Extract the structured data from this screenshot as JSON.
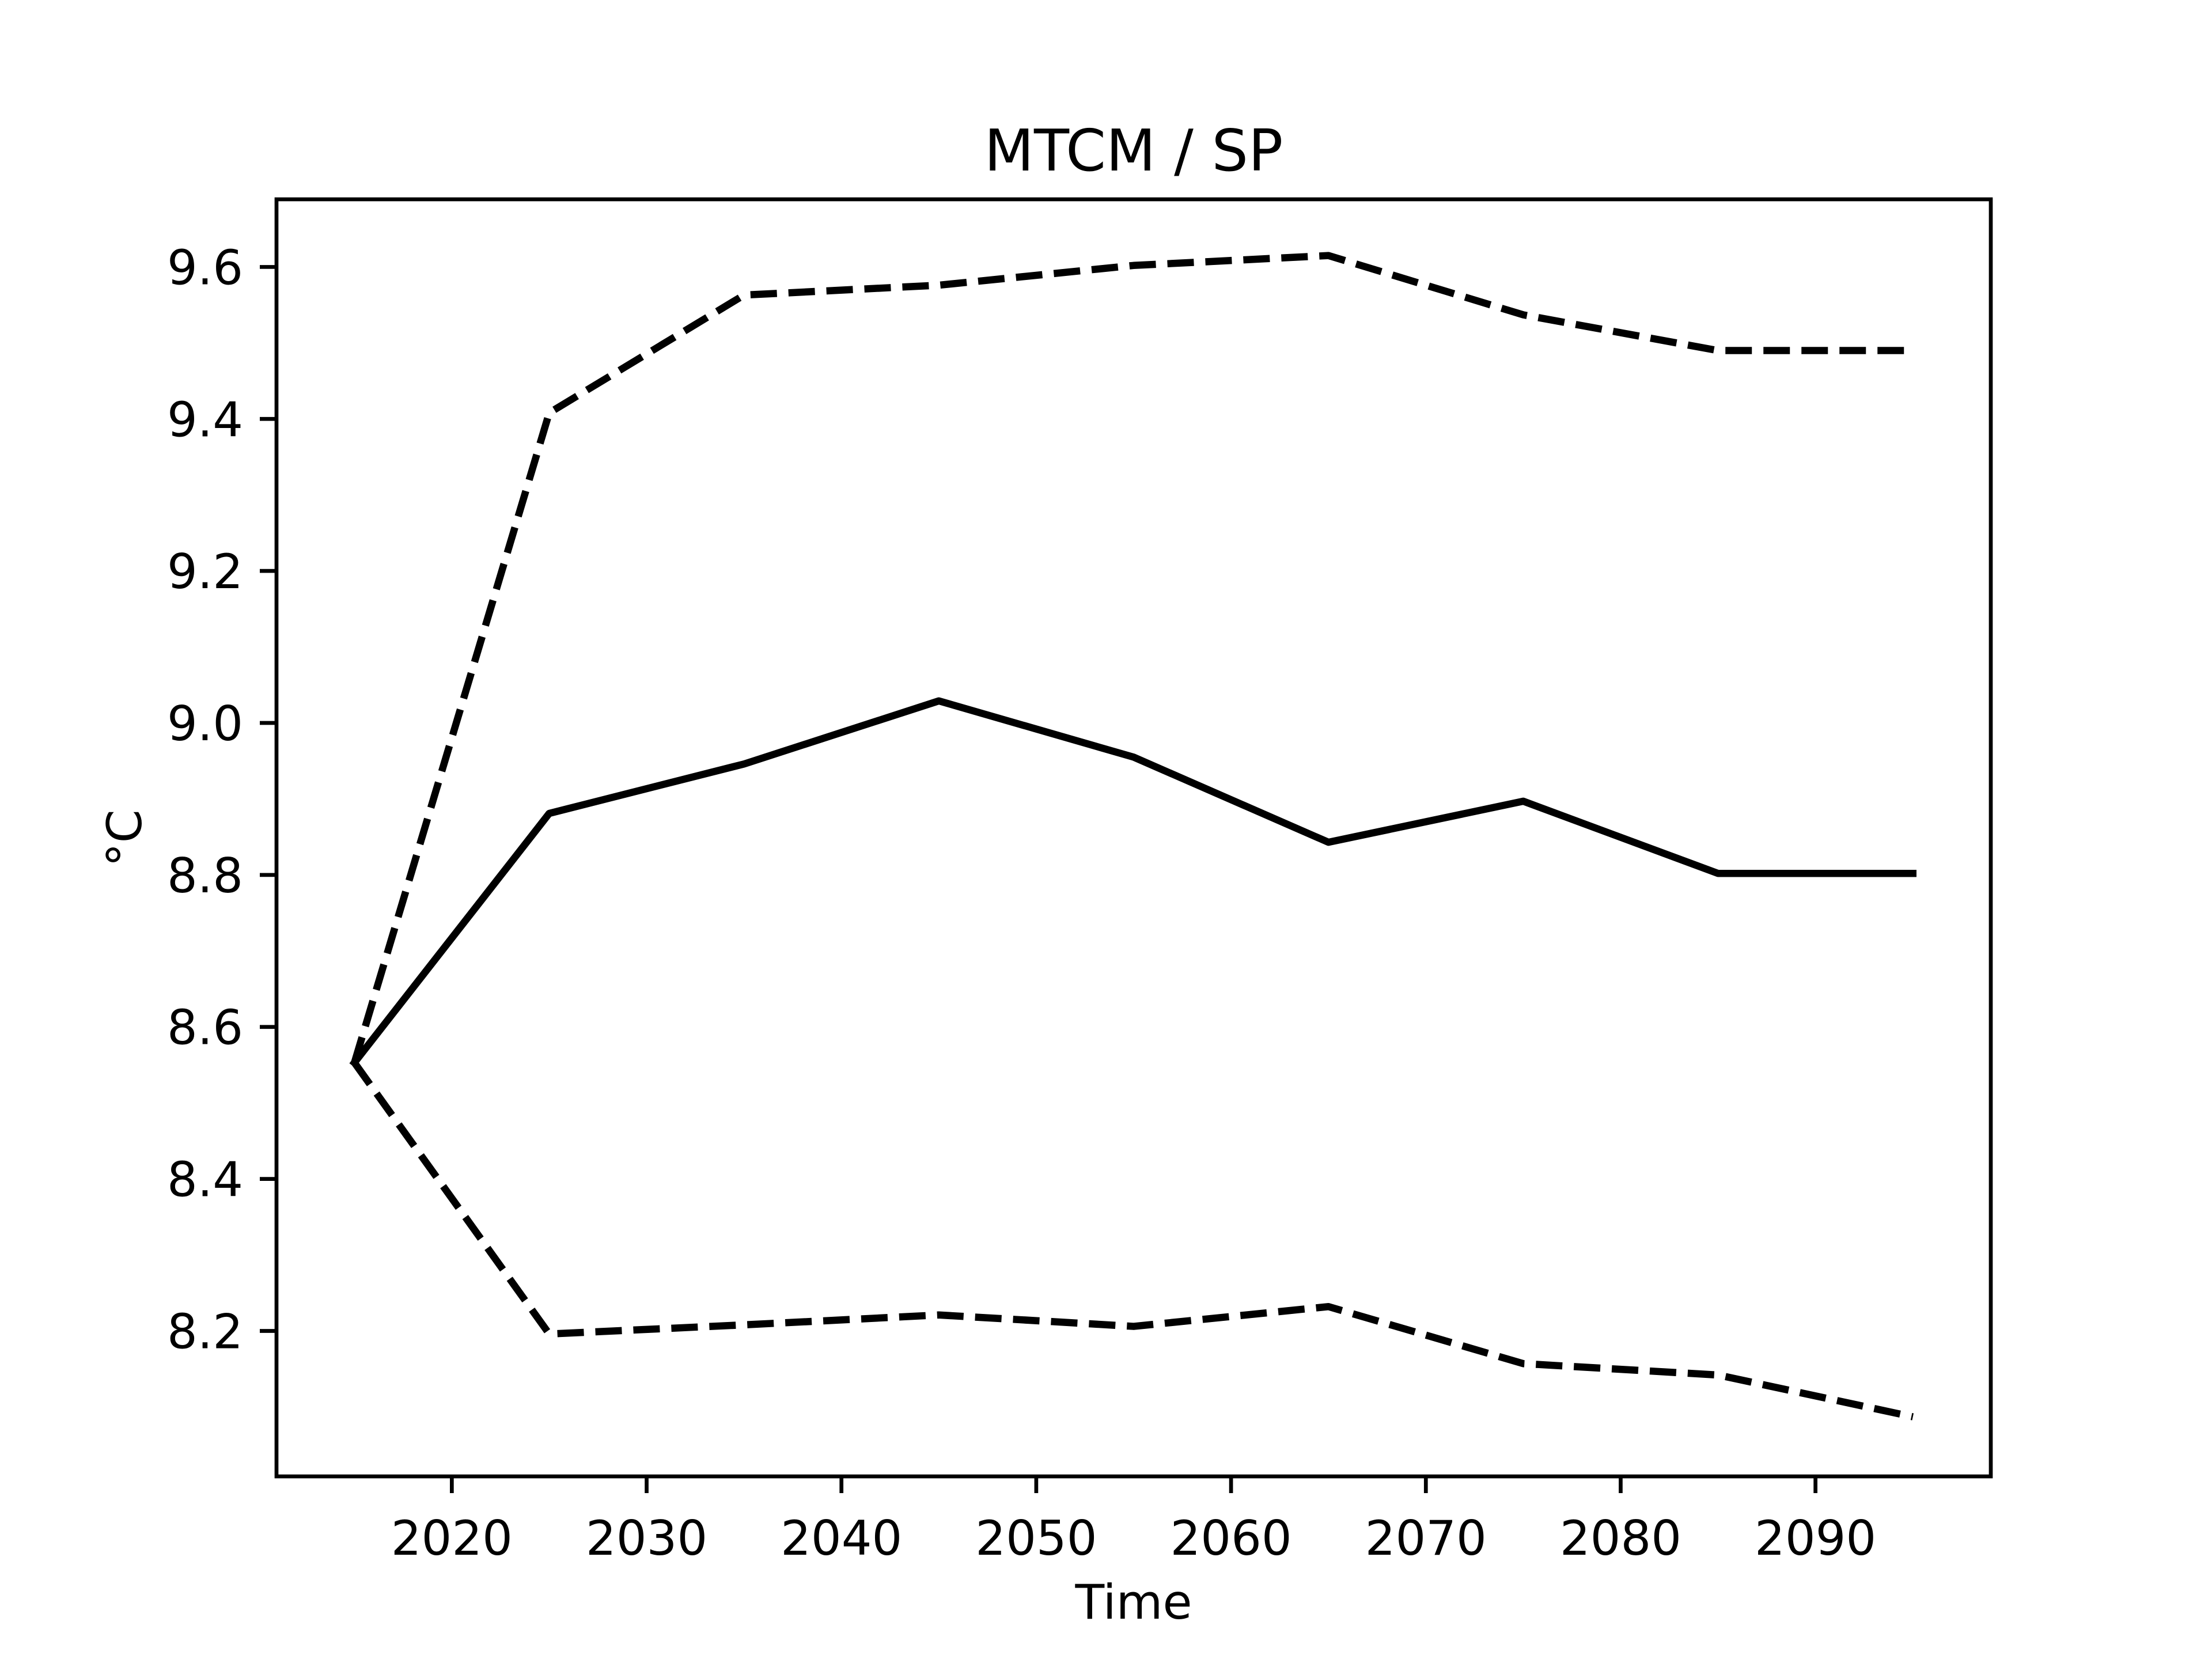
{
  "chart_data": {
    "type": "line",
    "title": "MTCM / SP",
    "x_label": "Time",
    "y_label": "°C",
    "x": [
      2015,
      2025,
      2035,
      2045,
      2055,
      2065,
      2075,
      2085,
      2095
    ],
    "series": [
      {
        "color": "#000000",
        "dashed": false,
        "values": [
          8.553,
          8.881,
          8.946,
          9.029,
          8.955,
          8.843,
          8.897,
          8.802,
          8.802
        ]
      },
      {
        "color": "#000000",
        "dashed": true,
        "values": [
          8.553,
          9.408,
          9.563,
          9.576,
          9.602,
          9.615,
          9.537,
          9.49,
          9.49
        ]
      },
      {
        "color": "#000000",
        "dashed": true,
        "values": [
          8.553,
          8.196,
          8.208,
          8.221,
          8.206,
          8.232,
          8.157,
          8.142,
          8.087
        ]
      }
    ],
    "xlim": [
      2011,
      2099
    ],
    "xticks": [
      2020,
      2030,
      2040,
      2050,
      2060,
      2070,
      2080,
      2090
    ],
    "ylim": [
      8.0086,
      9.689
    ],
    "yticks": [
      8.2,
      8.4,
      8.6,
      8.8,
      {
        "value": 9,
        "label": "9.0"
      },
      9.2,
      9.4,
      9.6
    ],
    "grid": false
  }
}
